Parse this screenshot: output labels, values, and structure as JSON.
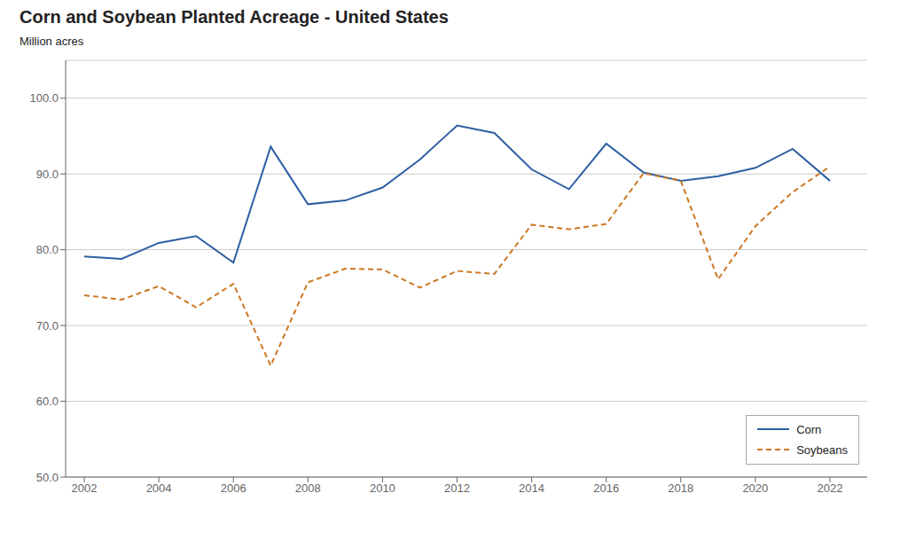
{
  "chart_data": {
    "type": "line",
    "title": "Corn and Soybean Planted Acreage - United States",
    "y_label": "Million acres",
    "x": [
      2002,
      2003,
      2004,
      2005,
      2006,
      2007,
      2008,
      2009,
      2010,
      2011,
      2012,
      2013,
      2014,
      2015,
      2016,
      2017,
      2018,
      2019,
      2020,
      2021,
      2022
    ],
    "series": [
      {
        "name": "Corn",
        "color": "#2E5FA3",
        "line_style": "solid",
        "values": [
          79.1,
          78.8,
          80.9,
          81.8,
          78.3,
          93.6,
          86.0,
          86.5,
          88.2,
          91.9,
          96.4,
          95.4,
          90.6,
          88.0,
          94.0,
          90.2,
          89.1,
          89.7,
          90.8,
          93.3,
          89.1
        ]
      },
      {
        "name": "Soybeans",
        "color": "#CC7722",
        "line_style": "dashed",
        "values": [
          74.0,
          73.4,
          75.2,
          72.4,
          75.5,
          64.7,
          75.7,
          77.5,
          77.4,
          75.0,
          77.2,
          76.8,
          83.3,
          82.7,
          83.4,
          90.1,
          89.1,
          76.1,
          83.1,
          87.6,
          91.0
        ]
      }
    ],
    "xlim": [
      2001.5,
      2023.0
    ],
    "xticks": [
      2002,
      2004,
      2006,
      2008,
      2010,
      2012,
      2014,
      2016,
      2018,
      2020,
      2022
    ],
    "ylim": [
      50.0,
      105.0
    ],
    "yticks": [
      {
        "value": 50.0,
        "label": "50.0"
      },
      {
        "value": 60.0,
        "label": "60.0"
      },
      {
        "value": 70.0,
        "label": "70.0"
      },
      {
        "value": 80.0,
        "label": "80.0"
      },
      {
        "value": 90.0,
        "label": "90.0"
      },
      {
        "value": 100.0,
        "label": "100.0"
      }
    ],
    "grid": "y",
    "legend": "lower right"
  }
}
